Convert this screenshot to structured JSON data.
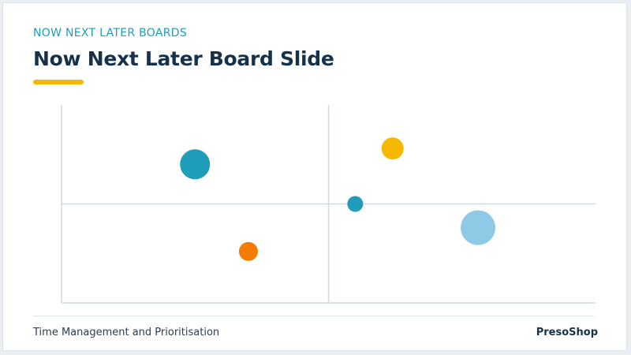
{
  "header": {
    "kicker": "NOW NEXT LATER BOARDS",
    "title": "Now Next Later Board Slide"
  },
  "footer": {
    "left": "Time Management and Prioritisation",
    "right": "PresoShop"
  },
  "colors": {
    "accent": "#f6b800",
    "teal": "#1f9dbb",
    "orange": "#f57c00",
    "yellow": "#f6b800",
    "light_blue": "#8ecae6",
    "axis": "#cfd9df",
    "title": "#16324a"
  },
  "chart_data": {
    "type": "scatter",
    "title": "",
    "xlabel": "",
    "ylabel": "",
    "xlim": [
      0,
      100
    ],
    "ylim": [
      0,
      100
    ],
    "grid": false,
    "quadrant_lines": {
      "x": 50,
      "y": 50
    },
    "points": [
      {
        "x": 25,
        "y": 70,
        "size": 19,
        "color": "#1f9dbb"
      },
      {
        "x": 35,
        "y": 26,
        "size": 12,
        "color": "#f57c00"
      },
      {
        "x": 62,
        "y": 78,
        "size": 14,
        "color": "#f6b800"
      },
      {
        "x": 55,
        "y": 50,
        "size": 10,
        "color": "#1f9dbb"
      },
      {
        "x": 78,
        "y": 38,
        "size": 22,
        "color": "#8ecae6"
      }
    ]
  }
}
